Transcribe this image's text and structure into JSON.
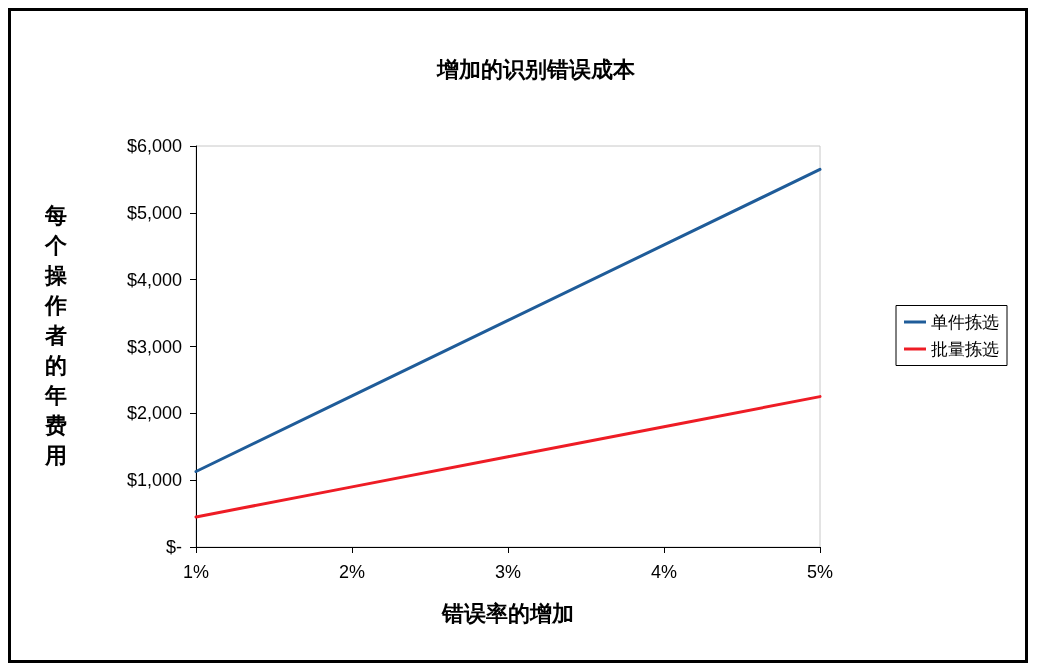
{
  "chart_data": {
    "type": "line",
    "title": "增加的识别错误成本",
    "xlabel": "错误率的增加",
    "ylabel": "每个操作者的年费用",
    "categories": [
      "1%",
      "2%",
      "3%",
      "4%",
      "5%"
    ],
    "series": [
      {
        "name": "单件拣选",
        "color": "#1f5c99",
        "values": [
          1130,
          2260,
          3390,
          4520,
          5650
        ]
      },
      {
        "name": "批量拣选",
        "color": "#ee1c25",
        "values": [
          450,
          900,
          1350,
          1800,
          2250
        ]
      }
    ],
    "ylim": [
      0,
      6000
    ],
    "yticks": [
      {
        "value": 0,
        "label": "$-"
      },
      {
        "value": 1000,
        "label": "$1,000"
      },
      {
        "value": 2000,
        "label": "$2,000"
      },
      {
        "value": 3000,
        "label": "$3,000"
      },
      {
        "value": 4000,
        "label": "$4,000"
      },
      {
        "value": 5000,
        "label": "$5,000"
      },
      {
        "value": 6000,
        "label": "$6,000"
      }
    ],
    "grid": false,
    "legend": "right",
    "marker": "none",
    "line_style": "solid"
  }
}
